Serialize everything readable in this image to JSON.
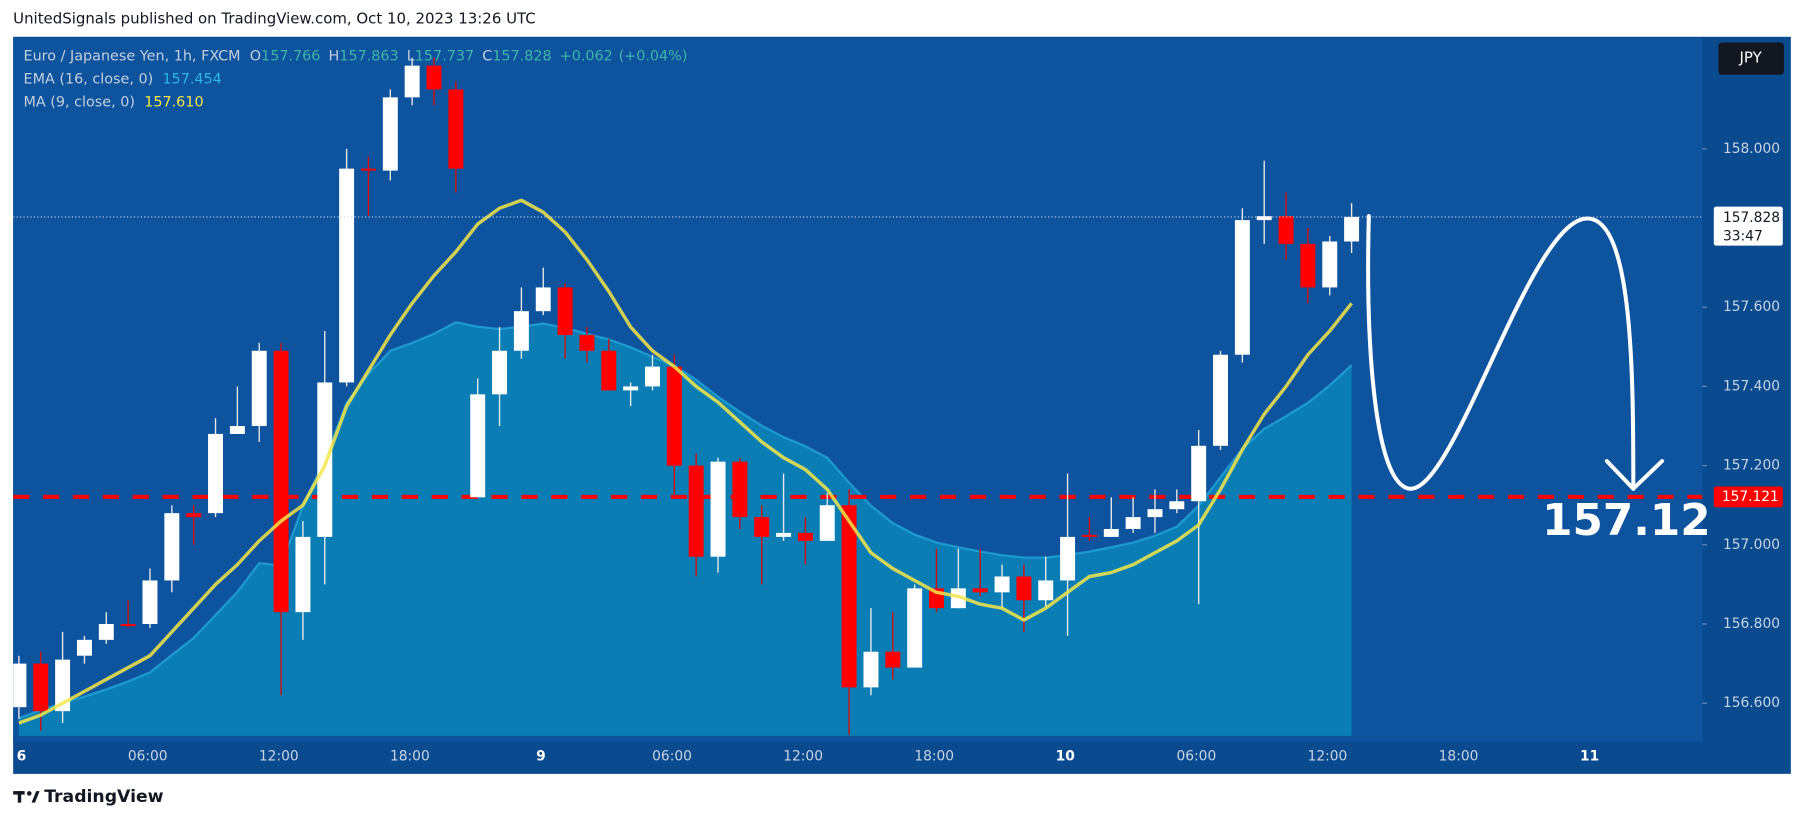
{
  "chart_data": {
    "type": "candlestick",
    "header": "UnitedSignals published on TradingView.com, Oct 10, 2023 13:26 UTC",
    "legend": {
      "symbol": "Euro / Japanese Yen, 1h, FXCM",
      "ohlc_labels": [
        "O",
        "H",
        "L",
        "C"
      ],
      "change": "+0.062",
      "change_pct": "(+0.04%)"
    },
    "currency": "JPY",
    "countdown": "33:47",
    "annotation": "157.12",
    "footer": "TradingView",
    "bull_color": "#ffffff",
    "bear_color": "#ff0000",
    "categories": [
      "6",
      null,
      null,
      null,
      null,
      null,
      "06:00",
      null,
      null,
      null,
      null,
      null,
      "12:00",
      null,
      null,
      null,
      null,
      null,
      "18:00",
      null,
      null,
      null,
      null,
      null,
      "9",
      null,
      null,
      null,
      null,
      null,
      "06:00",
      null,
      null,
      null,
      null,
      null,
      "12:00",
      null,
      null,
      null,
      null,
      null,
      "18:00",
      null,
      null,
      null,
      null,
      null,
      "10",
      null,
      null,
      null,
      null,
      null,
      "06:00",
      null,
      null,
      null,
      null,
      null,
      "12:00",
      null,
      null,
      null,
      null,
      null,
      "18:00",
      null,
      null,
      null,
      null,
      null,
      "11",
      null,
      null,
      null,
      null,
      null
    ],
    "candles": [
      [
        156.59,
        156.72,
        156.56,
        156.7
      ],
      [
        156.7,
        156.73,
        156.53,
        156.58
      ],
      [
        156.58,
        156.78,
        156.55,
        156.71
      ],
      [
        156.72,
        156.77,
        156.7,
        156.76
      ],
      [
        156.76,
        156.83,
        156.75,
        156.8
      ],
      [
        156.8,
        156.86,
        156.79,
        156.795
      ],
      [
        156.8,
        156.94,
        156.79,
        156.91
      ],
      [
        156.91,
        157.1,
        156.88,
        157.08
      ],
      [
        157.08,
        157.1,
        157.0,
        157.07
      ],
      [
        157.08,
        157.32,
        157.07,
        157.28
      ],
      [
        157.28,
        157.4,
        157.28,
        157.3
      ],
      [
        157.3,
        157.51,
        157.26,
        157.49
      ],
      [
        157.49,
        157.51,
        156.62,
        156.83
      ],
      [
        156.83,
        157.06,
        156.76,
        157.02
      ],
      [
        157.02,
        157.54,
        156.9,
        157.41
      ],
      [
        157.41,
        158.0,
        157.4,
        157.95
      ],
      [
        157.95,
        157.98,
        157.83,
        157.945
      ],
      [
        157.945,
        158.15,
        157.92,
        158.13
      ],
      [
        158.13,
        158.23,
        158.11,
        158.21
      ],
      [
        158.21,
        158.23,
        158.11,
        158.15
      ],
      [
        158.15,
        158.17,
        157.89,
        157.95
      ],
      [
        157.12,
        157.42,
        157.12,
        157.38
      ],
      [
        157.38,
        157.55,
        157.3,
        157.49
      ],
      [
        157.49,
        157.65,
        157.47,
        157.59
      ],
      [
        157.59,
        157.7,
        157.58,
        157.65
      ],
      [
        157.65,
        157.66,
        157.47,
        157.53
      ],
      [
        157.53,
        157.55,
        157.46,
        157.49
      ],
      [
        157.49,
        157.52,
        157.39,
        157.39
      ],
      [
        157.39,
        157.41,
        157.35,
        157.4
      ],
      [
        157.4,
        157.48,
        157.39,
        157.45
      ],
      [
        157.45,
        157.48,
        157.12,
        157.2
      ],
      [
        157.2,
        157.23,
        156.92,
        156.97
      ],
      [
        156.97,
        157.22,
        156.93,
        157.21
      ],
      [
        157.21,
        157.22,
        157.04,
        157.07
      ],
      [
        157.07,
        157.1,
        156.9,
        157.02
      ],
      [
        157.02,
        157.18,
        157.01,
        157.03
      ],
      [
        157.03,
        157.07,
        156.95,
        157.01
      ],
      [
        157.01,
        157.13,
        157.01,
        157.1
      ],
      [
        157.1,
        157.14,
        156.52,
        156.64
      ],
      [
        156.64,
        156.84,
        156.62,
        156.73
      ],
      [
        156.73,
        156.83,
        156.66,
        156.69
      ],
      [
        156.69,
        156.9,
        156.69,
        156.89
      ],
      [
        156.89,
        156.99,
        156.83,
        156.84
      ],
      [
        156.84,
        156.99,
        156.84,
        156.89
      ],
      [
        156.89,
        156.99,
        156.87,
        156.88
      ],
      [
        156.88,
        156.95,
        156.84,
        156.92
      ],
      [
        156.92,
        156.95,
        156.78,
        156.86
      ],
      [
        156.86,
        156.97,
        156.84,
        156.91
      ],
      [
        156.91,
        157.18,
        156.77,
        157.02
      ],
      [
        157.025,
        157.07,
        157.01,
        157.02
      ],
      [
        157.02,
        157.12,
        157.02,
        157.04
      ],
      [
        157.04,
        157.12,
        157.03,
        157.07
      ],
      [
        157.07,
        157.14,
        157.03,
        157.09
      ],
      [
        157.09,
        157.14,
        157.08,
        157.11
      ],
      [
        157.11,
        157.29,
        156.85,
        157.25
      ],
      [
        157.25,
        157.49,
        157.24,
        157.48
      ],
      [
        157.48,
        157.85,
        157.46,
        157.82
      ],
      [
        157.82,
        157.97,
        157.76,
        157.83
      ],
      [
        157.83,
        157.89,
        157.72,
        157.76
      ],
      [
        157.76,
        157.8,
        157.61,
        157.65
      ],
      [
        157.65,
        157.78,
        157.63,
        157.766
      ],
      [
        157.766,
        157.863,
        157.737,
        157.828
      ],
      null,
      null,
      null,
      null,
      null,
      null,
      null,
      null,
      null,
      null,
      null,
      null,
      null,
      null,
      null,
      null
    ],
    "series": [
      {
        "name": "EMA (16, close, 0)",
        "color": "#2bb7e8",
        "fill": "#0a86b8",
        "style": "area",
        "value_label": "157.454",
        "values": [
          156.562,
          156.583,
          156.6,
          156.617,
          156.635,
          156.655,
          156.678,
          156.722,
          156.765,
          156.823,
          156.881,
          156.954,
          156.948,
          157.099,
          157.214,
          157.359,
          157.432,
          157.49,
          157.51,
          157.533,
          157.562,
          157.551,
          157.545,
          157.551,
          157.559,
          157.548,
          157.533,
          157.519,
          157.499,
          157.475,
          157.452,
          157.417,
          157.374,
          157.336,
          157.301,
          157.272,
          157.249,
          157.22,
          157.157,
          157.099,
          157.055,
          157.026,
          157.006,
          156.994,
          156.983,
          156.974,
          156.968,
          156.968,
          156.974,
          156.983,
          156.994,
          157.006,
          157.023,
          157.046,
          157.099,
          157.171,
          157.243,
          157.293,
          157.325,
          157.359,
          157.403,
          157.454,
          null,
          null,
          null,
          null,
          null,
          null,
          null,
          null,
          null,
          null,
          null,
          null,
          null,
          null,
          null,
          null
        ]
      },
      {
        "name": "MA (9, close, 0)",
        "color": "#f5e64a",
        "style": "line",
        "value_label": "157.610",
        "values": [
          156.55,
          156.57,
          156.6,
          156.63,
          156.66,
          156.69,
          156.72,
          156.78,
          156.84,
          156.9,
          156.95,
          157.01,
          157.06,
          157.1,
          157.2,
          157.35,
          157.44,
          157.53,
          157.61,
          157.68,
          157.74,
          157.81,
          157.85,
          157.87,
          157.84,
          157.79,
          157.72,
          157.64,
          157.55,
          157.49,
          157.45,
          157.4,
          157.36,
          157.31,
          157.26,
          157.22,
          157.19,
          157.14,
          157.06,
          156.98,
          156.94,
          156.91,
          156.88,
          156.87,
          156.85,
          156.84,
          156.81,
          156.84,
          156.88,
          156.92,
          156.93,
          156.95,
          156.98,
          157.01,
          157.05,
          157.14,
          157.24,
          157.33,
          157.4,
          157.48,
          157.54,
          157.61,
          null,
          null,
          null,
          null,
          null,
          null,
          null,
          null,
          null,
          null,
          null,
          null,
          null,
          null,
          null,
          null
        ]
      }
    ],
    "hline": {
      "value": 157.121,
      "label": "157.121",
      "color": "#ff0000"
    },
    "ylim": [
      156.5,
      158.28
    ],
    "yticks": [
      {
        "value": 158,
        "label": "158.000"
      },
      {
        "value": 157.6,
        "label": "157.600"
      },
      {
        "value": 157.4,
        "label": "157.400"
      },
      {
        "value": 157.2,
        "label": "157.200"
      },
      {
        "value": 157,
        "label": "157.000"
      },
      {
        "value": 156.8,
        "label": "156.800"
      },
      {
        "value": 156.6,
        "label": "156.600"
      }
    ],
    "grid": false
  }
}
